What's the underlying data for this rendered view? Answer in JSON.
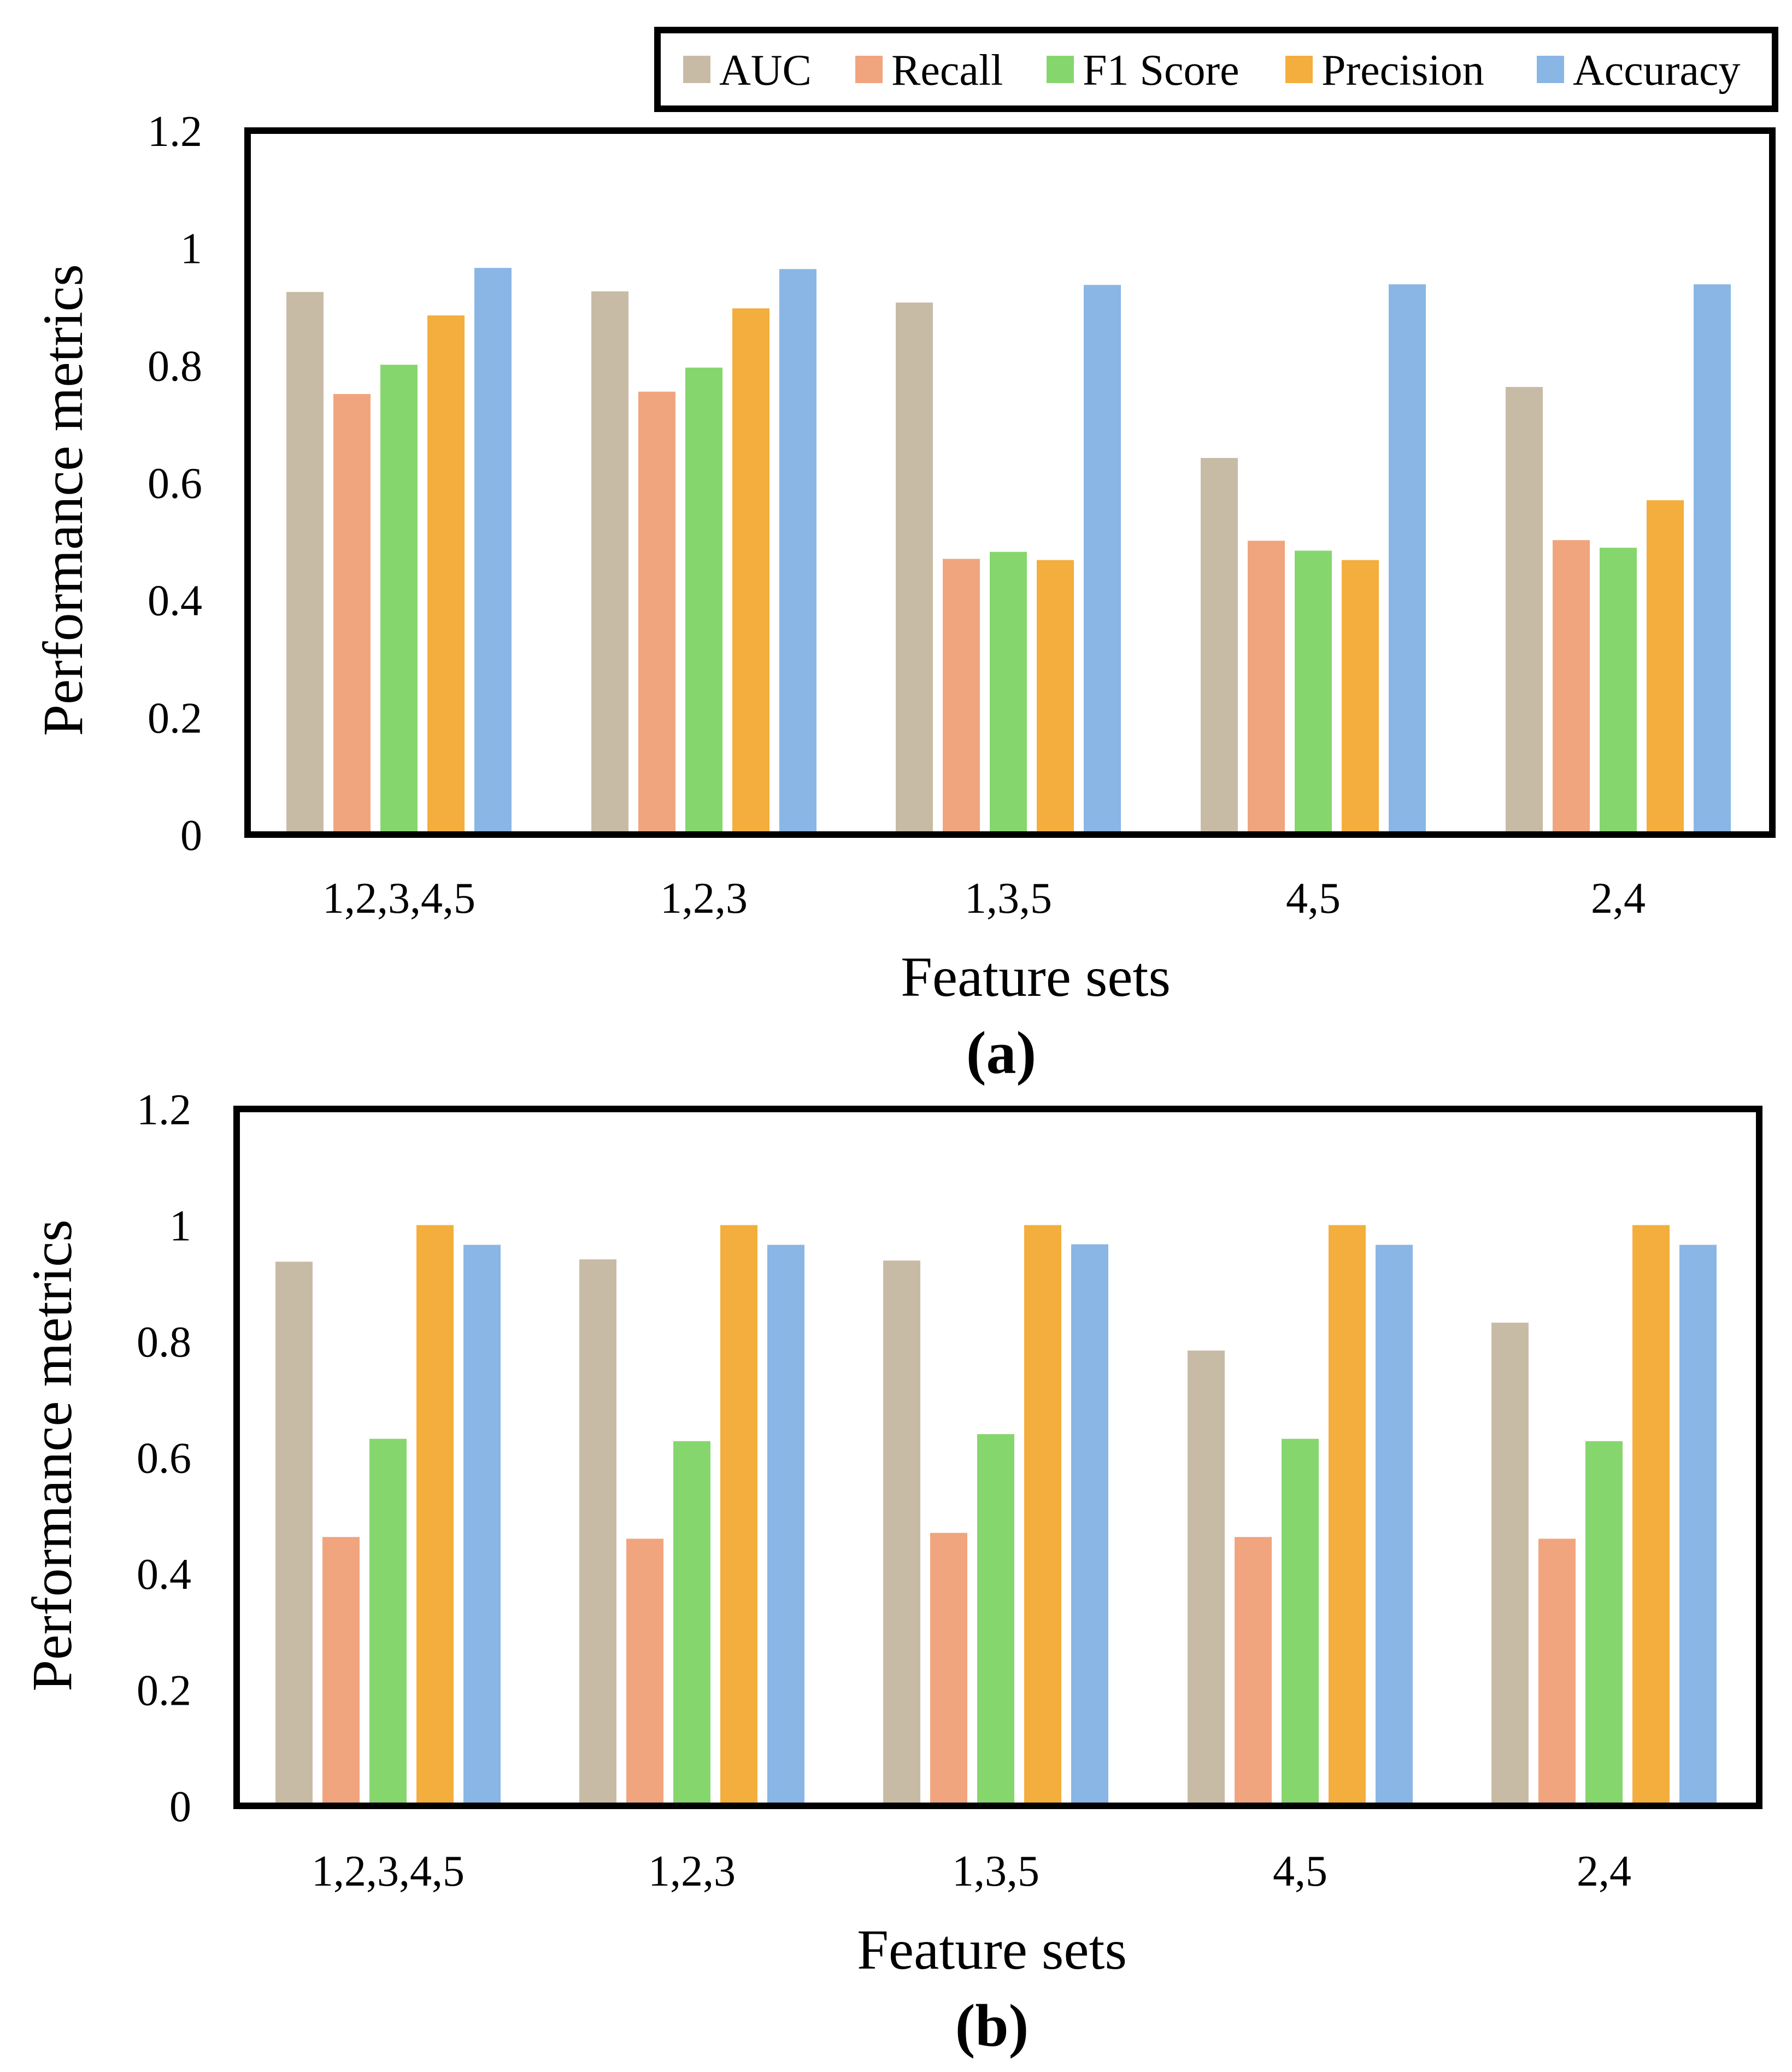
{
  "figure": {
    "title": ""
  },
  "legend": {
    "items": [
      {
        "name": "AUC",
        "color": "#C8BBA6"
      },
      {
        "name": "Recall",
        "color": "#F0A57E"
      },
      {
        "name": "F1 Score",
        "color": "#86D66E"
      },
      {
        "name": "Precision",
        "color": "#F4AE3D"
      },
      {
        "name": "Accuracy",
        "color": "#89B6E4"
      }
    ]
  },
  "chart_data": [
    {
      "type": "bar",
      "panel_label": "(a)",
      "title": "",
      "xlabel": "Feature sets",
      "ylabel": "Performance metrics",
      "ylim": [
        0,
        1.2
      ],
      "yticks": [
        "0",
        "0.2",
        "0.4",
        "0.6",
        "0.8",
        "1",
        "1.2"
      ],
      "categories": [
        "1,2,3,4,5",
        "1,2,3",
        "1,3,5",
        "4,5",
        "2,4"
      ],
      "series": [
        {
          "name": "AUC",
          "color": "#C8BBA6",
          "values": [
            0.925,
            0.926,
            0.907,
            0.642,
            0.763
          ]
        },
        {
          "name": "Recall",
          "color": "#F0A57E",
          "values": [
            0.751,
            0.755,
            0.47,
            0.501,
            0.502
          ]
        },
        {
          "name": "F1 Score",
          "color": "#86D66E",
          "values": [
            0.801,
            0.796,
            0.482,
            0.484,
            0.489
          ]
        },
        {
          "name": "Precision",
          "color": "#F4AE3D",
          "values": [
            0.885,
            0.897,
            0.468,
            0.468,
            0.57
          ]
        },
        {
          "name": "Accuracy",
          "color": "#89B6E4",
          "values": [
            0.966,
            0.964,
            0.937,
            0.938,
            0.938
          ]
        }
      ]
    },
    {
      "type": "bar",
      "panel_label": "(b)",
      "title": "",
      "xlabel": "Feature sets",
      "ylabel": "Performance metrics",
      "ylim": [
        0,
        1.2
      ],
      "yticks": [
        "0",
        "0.2",
        "0.4",
        "0.6",
        "0.8",
        "1",
        "1.2"
      ],
      "categories": [
        "1,2,3,4,5",
        "1,2,3",
        "1,3,5",
        "4,5",
        "2,4"
      ],
      "series": [
        {
          "name": "AUC",
          "color": "#C8BBA6",
          "values": [
            0.937,
            0.941,
            0.939,
            0.784,
            0.832
          ]
        },
        {
          "name": "Recall",
          "color": "#F0A57E",
          "values": [
            0.463,
            0.46,
            0.47,
            0.463,
            0.46
          ]
        },
        {
          "name": "F1 Score",
          "color": "#86D66E",
          "values": [
            0.632,
            0.628,
            0.64,
            0.632,
            0.628
          ]
        },
        {
          "name": "Precision",
          "color": "#F4AE3D",
          "values": [
            1.0,
            1.0,
            1.0,
            1.0,
            1.0
          ]
        },
        {
          "name": "Accuracy",
          "color": "#89B6E4",
          "values": [
            0.966,
            0.966,
            0.967,
            0.966,
            0.966
          ]
        }
      ]
    }
  ]
}
